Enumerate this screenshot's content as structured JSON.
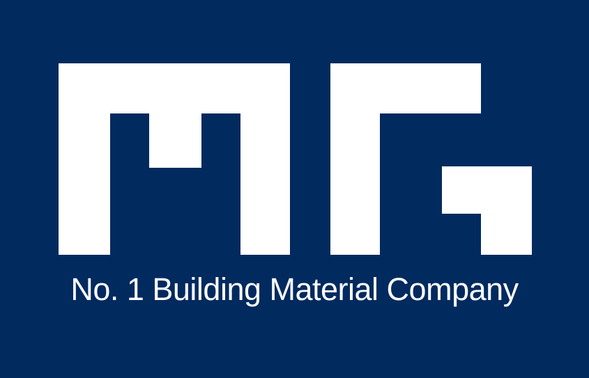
{
  "logo": {
    "letters": "MG",
    "background_color": "#012a5f",
    "foreground_color": "#ffffff"
  },
  "tagline": "No. 1 Building Material Company"
}
